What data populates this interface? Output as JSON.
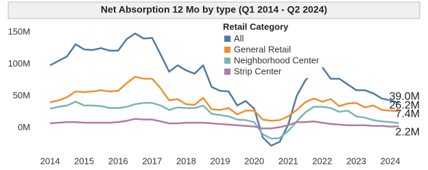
{
  "chart_data": {
    "type": "line",
    "title": "Net Absorption 12 Mo by type (Q1 2014 - Q2 2024)",
    "legend_title": "Retail Category",
    "categories": [
      "2014",
      null,
      null,
      null,
      "2015",
      null,
      null,
      null,
      "2016",
      null,
      null,
      null,
      "2017",
      null,
      null,
      null,
      "2018",
      null,
      null,
      null,
      "2019",
      null,
      null,
      null,
      "2020",
      null,
      null,
      null,
      "2021",
      null,
      null,
      null,
      "2022",
      null,
      null,
      null,
      "2023",
      null,
      null,
      null,
      "2024",
      null
    ],
    "ylim": [
      -35,
      165
    ],
    "yticks": [
      {
        "value": 0,
        "label": "0M"
      },
      {
        "value": 50,
        "label": "50M"
      },
      {
        "value": 100,
        "label": "100M"
      },
      {
        "value": 150,
        "label": "150M"
      }
    ],
    "grid": false,
    "series": [
      {
        "name": "All",
        "color": "#4e79a7",
        "values": [
          98,
          105,
          112,
          131,
          123,
          122,
          125,
          121,
          121,
          139,
          148,
          140,
          141,
          115,
          88,
          98,
          90,
          85,
          98,
          64,
          58,
          57,
          35,
          42,
          30,
          -15,
          -28,
          -22,
          5,
          50,
          74,
          89,
          95,
          77,
          77,
          68,
          59,
          59,
          54,
          46,
          43,
          39.0
        ],
        "value_labels": [
          null,
          null,
          null,
          null,
          null,
          null,
          null,
          null,
          null,
          null,
          null,
          null,
          null,
          null,
          null,
          null,
          null,
          null,
          null,
          null,
          null,
          null,
          null,
          null,
          null,
          null,
          null,
          null,
          null,
          null,
          null,
          null,
          null,
          null,
          null,
          null,
          null,
          null,
          null,
          null,
          null,
          "39.0M"
        ]
      },
      {
        "name": "General Retail",
        "color": "#f28e2b",
        "values": [
          40,
          43,
          48,
          57,
          56,
          57,
          59,
          57,
          58,
          70,
          80,
          77,
          77,
          62,
          43,
          45,
          37,
          36,
          47,
          29,
          28,
          31,
          21,
          27,
          27,
          13,
          11,
          12,
          18,
          28,
          40,
          46,
          41,
          45,
          34,
          38,
          39,
          32,
          35,
          28,
          27,
          26.2
        ],
        "value_labels": [
          null,
          null,
          null,
          null,
          null,
          null,
          null,
          null,
          null,
          null,
          null,
          null,
          null,
          null,
          null,
          null,
          null,
          null,
          null,
          null,
          null,
          null,
          null,
          null,
          null,
          null,
          null,
          null,
          null,
          null,
          null,
          null,
          null,
          null,
          null,
          null,
          null,
          null,
          null,
          null,
          null,
          "26.2M"
        ]
      },
      {
        "name": "Neighborhood Center",
        "color": "#76b7b2",
        "values": [
          30,
          33,
          35,
          41,
          35,
          35,
          34,
          31,
          31,
          33,
          37,
          39,
          39,
          35,
          28,
          32,
          31,
          31,
          35,
          22,
          20,
          18,
          13,
          12,
          9,
          -10,
          -17,
          -16,
          -5,
          10,
          24,
          33,
          33,
          31,
          25,
          27,
          18,
          16,
          12,
          10,
          9,
          7.4
        ],
        "value_labels": [
          null,
          null,
          null,
          null,
          null,
          null,
          null,
          null,
          null,
          null,
          null,
          null,
          null,
          null,
          null,
          null,
          null,
          null,
          null,
          null,
          null,
          null,
          null,
          null,
          null,
          null,
          null,
          null,
          null,
          null,
          null,
          null,
          null,
          null,
          null,
          null,
          null,
          null,
          null,
          null,
          null,
          "7.4M"
        ]
      },
      {
        "name": "Strip Center",
        "color": "#b07aa1",
        "values": [
          7,
          8,
          9,
          9,
          8,
          8,
          8,
          8,
          9,
          11,
          14,
          13,
          13,
          10,
          7,
          7,
          8,
          8,
          8,
          7,
          6,
          5,
          4,
          3,
          2,
          -1,
          -1,
          1,
          4,
          9,
          9,
          10,
          8,
          6,
          5,
          4,
          4,
          4,
          3,
          3,
          2,
          2.2
        ],
        "value_labels": [
          null,
          null,
          null,
          null,
          null,
          null,
          null,
          null,
          null,
          null,
          null,
          null,
          null,
          null,
          null,
          null,
          null,
          null,
          null,
          null,
          null,
          null,
          null,
          null,
          null,
          null,
          null,
          null,
          null,
          null,
          null,
          null,
          null,
          null,
          null,
          null,
          null,
          null,
          null,
          null,
          null,
          "2.2M"
        ]
      }
    ]
  }
}
